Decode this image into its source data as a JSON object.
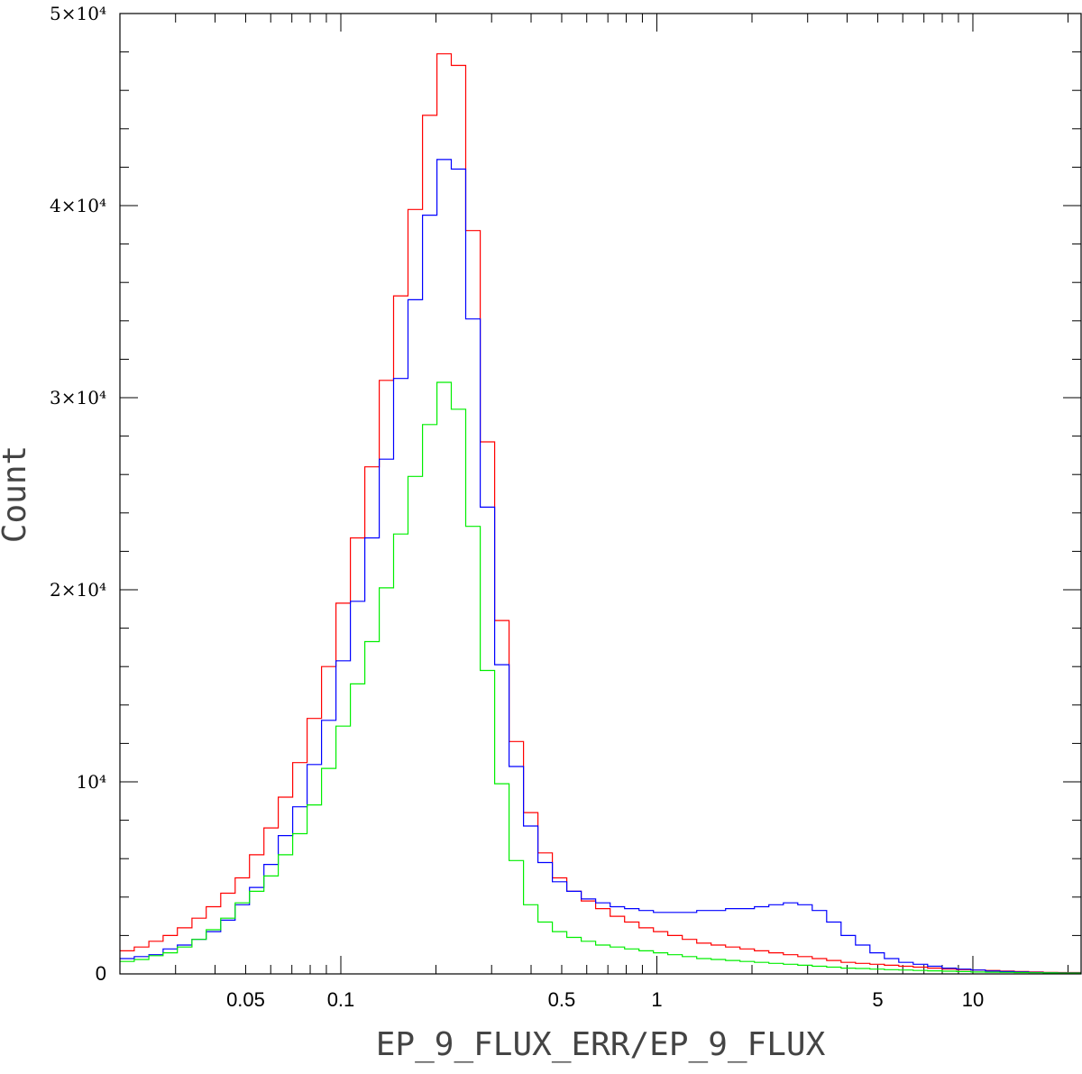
{
  "chart_data": {
    "type": "histogram",
    "xlabel": "EP_9_FLUX_ERR/EP_9_FLUX",
    "ylabel": "Count",
    "x_scale": "log",
    "xlim": [
      0.02,
      22
    ],
    "ylim": [
      0,
      50000
    ],
    "x_ticks": [
      {
        "value": 0.05,
        "label": "0.05"
      },
      {
        "value": 0.1,
        "label": "0.1"
      },
      {
        "value": 0.5,
        "label": "0.5"
      },
      {
        "value": 1,
        "label": "1"
      },
      {
        "value": 5,
        "label": "5"
      },
      {
        "value": 10,
        "label": "10"
      }
    ],
    "y_ticks": [
      {
        "value": 0,
        "label": "0"
      },
      {
        "value": 10000,
        "label": "10⁴"
      },
      {
        "value": 20000,
        "label": "2×10⁴"
      },
      {
        "value": 30000,
        "label": "3×10⁴"
      },
      {
        "value": 40000,
        "label": "4×10⁴"
      },
      {
        "value": 50000,
        "label": "5×10⁴"
      }
    ],
    "bin_edges": [
      0.02,
      0.0222,
      0.0247,
      0.0274,
      0.0304,
      0.0338,
      0.0375,
      0.0417,
      0.0463,
      0.0514,
      0.0571,
      0.0634,
      0.0704,
      0.0782,
      0.0869,
      0.0965,
      0.1072,
      0.1191,
      0.1323,
      0.1469,
      0.1632,
      0.1813,
      0.2014,
      0.2237,
      0.2485,
      0.2761,
      0.3067,
      0.3407,
      0.3785,
      0.4205,
      0.4671,
      0.5189,
      0.5765,
      0.6404,
      0.7114,
      0.7903,
      0.8779,
      0.9753,
      1.083,
      1.204,
      1.337,
      1.485,
      1.65,
      1.833,
      2.036,
      2.262,
      2.513,
      2.792,
      3.101,
      3.445,
      3.827,
      4.252,
      4.723,
      5.247,
      5.829,
      6.475,
      7.193,
      7.991,
      8.877,
      9.862,
      10.956,
      12.17,
      13.52,
      15.02,
      16.69,
      18.54,
      22
    ],
    "series": [
      {
        "color": "#ff0000",
        "values": [
          1200,
          1400,
          1700,
          2000,
          2400,
          2900,
          3500,
          4200,
          5000,
          6200,
          7600,
          9200,
          11000,
          13300,
          16000,
          19300,
          22700,
          26400,
          30900,
          35300,
          39800,
          44700,
          47900,
          47300,
          38700,
          27700,
          18400,
          12100,
          8400,
          6300,
          5000,
          4300,
          3800,
          3400,
          3000,
          2700,
          2400,
          2200,
          2000,
          1800,
          1600,
          1500,
          1400,
          1300,
          1200,
          1100,
          1000,
          900,
          800,
          700,
          600,
          550,
          500,
          450,
          400,
          350,
          300,
          250,
          220,
          200,
          180,
          150,
          120,
          100,
          80,
          70
        ]
      },
      {
        "color": "#0000ff",
        "values": [
          800,
          900,
          1000,
          1300,
          1500,
          1800,
          2200,
          2800,
          3600,
          4500,
          5700,
          7200,
          8700,
          10900,
          13200,
          16300,
          19400,
          22700,
          26800,
          31000,
          35100,
          39500,
          42400,
          41900,
          34100,
          24300,
          16100,
          10800,
          7700,
          5800,
          4800,
          4300,
          3900,
          3700,
          3500,
          3400,
          3300,
          3200,
          3200,
          3200,
          3300,
          3300,
          3400,
          3400,
          3500,
          3600,
          3700,
          3600,
          3300,
          2700,
          2000,
          1500,
          1100,
          800,
          600,
          500,
          400,
          300,
          250,
          200,
          150,
          120,
          100,
          80,
          60,
          50
        ]
      },
      {
        "color": "#00ee00",
        "values": [
          650,
          750,
          950,
          1100,
          1400,
          1800,
          2300,
          2900,
          3700,
          4300,
          5100,
          6200,
          7300,
          8800,
          10700,
          12900,
          15100,
          17300,
          20100,
          22900,
          25900,
          28600,
          30800,
          29400,
          23300,
          15800,
          9900,
          5900,
          3600,
          2700,
          2200,
          1900,
          1700,
          1500,
          1400,
          1300,
          1200,
          1100,
          1000,
          900,
          800,
          750,
          700,
          650,
          600,
          550,
          500,
          450,
          400,
          350,
          300,
          280,
          250,
          220,
          200,
          180,
          160,
          140,
          120,
          100,
          90,
          80,
          70,
          60,
          50,
          40
        ]
      }
    ]
  }
}
